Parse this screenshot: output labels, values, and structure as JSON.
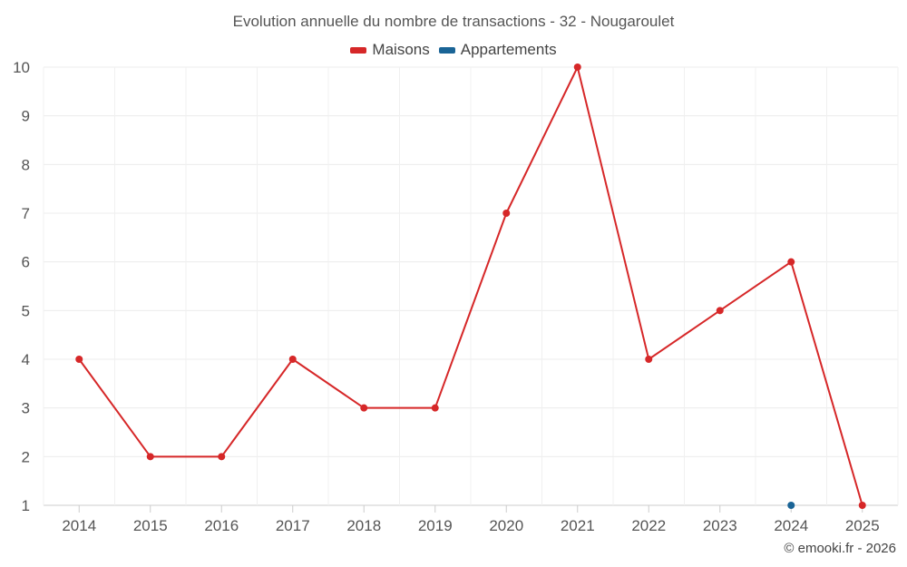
{
  "chart_data": {
    "type": "line",
    "title": "Evolution annuelle du nombre de transactions - 32 - Nougaroulet",
    "xlabel": "",
    "ylabel": "",
    "categories": [
      "2014",
      "2015",
      "2016",
      "2017",
      "2018",
      "2019",
      "2020",
      "2021",
      "2022",
      "2023",
      "2024",
      "2025"
    ],
    "ylim": [
      1,
      10
    ],
    "yticks": [
      "1",
      "2",
      "3",
      "4",
      "5",
      "6",
      "7",
      "8",
      "9",
      "10"
    ],
    "grid": true,
    "legend_position": "top-center",
    "series": [
      {
        "name": "Maisons",
        "color": "#d62728",
        "values": [
          4,
          2,
          2,
          4,
          3,
          3,
          7,
          10,
          4,
          5,
          6,
          1
        ]
      },
      {
        "name": "Appartements",
        "color": "#1a6496",
        "values": [
          null,
          null,
          null,
          null,
          null,
          null,
          null,
          null,
          null,
          null,
          1,
          null
        ]
      }
    ]
  },
  "footer": {
    "credit": "© emooki.fr - 2026"
  }
}
